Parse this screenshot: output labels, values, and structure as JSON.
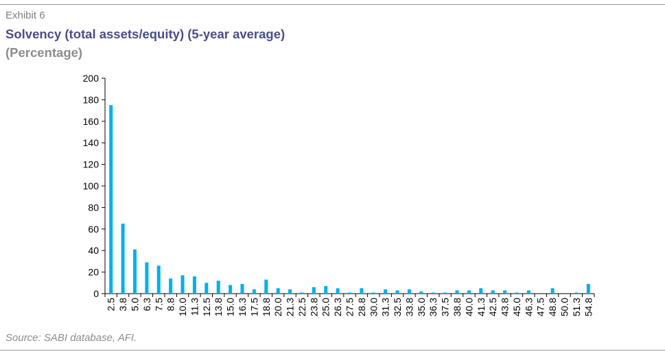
{
  "header": {
    "exhibit": "Exhibit 6",
    "title": "Solvency (total assets/equity) (5-year average)",
    "subtitle": "(Percentage)"
  },
  "footer": {
    "source": "Source: SABI database, AFI."
  },
  "colors": {
    "bar": "#00b0f0",
    "title": "#4b4b8f",
    "muted": "#8c8c8c"
  },
  "chart_data": {
    "type": "bar",
    "categories": [
      "2.5",
      "3.8",
      "5.0",
      "6.3",
      "7.5",
      "8.8",
      "10.0",
      "11.3",
      "12.5",
      "13.8",
      "15.0",
      "16.3",
      "17.5",
      "18.8",
      "20.0",
      "21.3",
      "22.5",
      "23.8",
      "25.0",
      "26.3",
      "27.5",
      "28.8",
      "30.0",
      "31.3",
      "32.5",
      "33.8",
      "35.0",
      "36.3",
      "37.5",
      "38.8",
      "40.0",
      "41.3",
      "42.5",
      "43.8",
      "45.0",
      "46.3",
      "47.5",
      "48.8",
      "50.0",
      "51.3",
      "54.8"
    ],
    "values": [
      175,
      65,
      41,
      29,
      26,
      14,
      17,
      16,
      10,
      12,
      8,
      9,
      4,
      13,
      5,
      4,
      1,
      6,
      7,
      5,
      1,
      5,
      1,
      4,
      3,
      4,
      2,
      1,
      1,
      3,
      3,
      5,
      3,
      3,
      1,
      3,
      0,
      5,
      0,
      1,
      9
    ],
    "ylim": [
      0,
      200
    ],
    "yticks": [
      0,
      20,
      40,
      60,
      80,
      100,
      120,
      140,
      160,
      180,
      200
    ],
    "ytick_labels": [
      "0",
      "20",
      "40",
      "60",
      "80",
      "100",
      "120",
      "140",
      "160",
      "180",
      "200"
    ],
    "xlabel": "",
    "ylabel": "",
    "grid": false,
    "legend": "none"
  }
}
